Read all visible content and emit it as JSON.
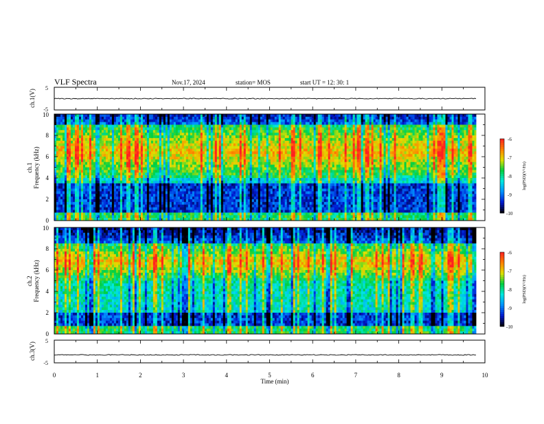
{
  "header": {
    "title": "VLF Spectra",
    "date": "Nov.17, 2024",
    "station": "station= MOS",
    "start_ut": "start  UT =   12: 30: 1"
  },
  "chart_data": [
    {
      "type": "line",
      "name": "ch1-waveform",
      "ylabel": "ch.1(V)",
      "yticks": [
        "5",
        "-5"
      ],
      "ylim": [
        -5,
        5
      ],
      "trace_level": 0,
      "xlim": [
        0,
        10
      ]
    },
    {
      "type": "heatmap",
      "name": "ch1-spectrogram",
      "ylabel_line1": "ch.1",
      "ylabel_line2": "Frequency (kHz)",
      "ylim": [
        0,
        10
      ],
      "yticks": [
        "0",
        "2",
        "4",
        "6",
        "8",
        "10"
      ],
      "xlim": [
        0,
        10
      ],
      "data_end_min": 9.8,
      "intense_band_khz": [
        4.0,
        9.0
      ],
      "quiet_band_khz": [
        0.7,
        3.5
      ],
      "colorbar": {
        "label": "log(PSD)(V²/Hz)",
        "ticks": [
          "-6",
          "-7",
          "-8",
          "-9",
          "-10"
        ],
        "range": [
          -10,
          -6
        ]
      }
    },
    {
      "type": "heatmap",
      "name": "ch2-spectrogram",
      "ylabel_line1": "ch.2",
      "ylabel_line2": "Frequency (kHz)",
      "ylim": [
        0,
        10
      ],
      "yticks": [
        "0",
        "2",
        "4",
        "6",
        "8",
        "10"
      ],
      "xlim": [
        0,
        10
      ],
      "data_end_min": 9.8,
      "intense_band_khz": [
        5.0,
        8.5
      ],
      "quiet_band_khz": [
        0.8,
        2.0
      ],
      "colorbar": {
        "label": "log(PSD)(V²/Hz)",
        "ticks": [
          "-6",
          "-7",
          "-8",
          "-9",
          "-10"
        ],
        "range": [
          -10,
          -6
        ]
      }
    },
    {
      "type": "line",
      "name": "ch3-waveform",
      "ylabel": "ch.3(V)",
      "yticks": [
        "5",
        "-5"
      ],
      "ylim": [
        -5,
        5
      ],
      "trace_level": -1.5,
      "xlim": [
        0,
        10
      ],
      "xlabel": "Time  (min)",
      "xticks": [
        "0",
        "1",
        "2",
        "3",
        "4",
        "5",
        "6",
        "7",
        "8",
        "9",
        "10"
      ]
    }
  ],
  "colors": {
    "colormap": [
      "#000000",
      "#0018d0",
      "#0090ff",
      "#00e8e0",
      "#00d040",
      "#e0e000",
      "#ff8000",
      "#ff2020",
      "#ffffff"
    ]
  }
}
